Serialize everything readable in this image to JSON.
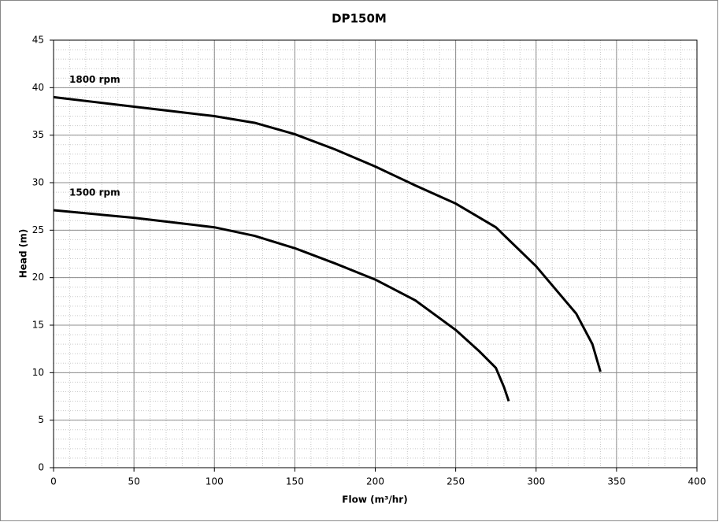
{
  "chart_data": {
    "type": "line",
    "title": "DP150M",
    "x_label": "Flow (m³/hr)",
    "y_label": "Head (m)",
    "xlim": [
      0,
      400
    ],
    "xticks": [
      0,
      50,
      100,
      150,
      200,
      250,
      300,
      350,
      400
    ],
    "ylim": [
      0,
      45
    ],
    "yticks": [
      0,
      5,
      10,
      15,
      20,
      25,
      30,
      35,
      40,
      45
    ],
    "grid": true,
    "series": [
      {
        "name": "1800 rpm",
        "color": "#000000",
        "x": [
          0,
          25,
          50,
          75,
          100,
          125,
          150,
          175,
          200,
          225,
          250,
          275,
          300,
          325,
          335,
          340
        ],
        "values": [
          39,
          38.5,
          38,
          37.5,
          37,
          36.3,
          35.1,
          33.5,
          31.7,
          29.7,
          27.8,
          25.3,
          21.2,
          16.2,
          13,
          10.1
        ]
      },
      {
        "name": "1500 rpm",
        "color": "#000000",
        "x": [
          0,
          50,
          100,
          125,
          150,
          175,
          200,
          225,
          250,
          265,
          275,
          280,
          283
        ],
        "values": [
          27.1,
          26.3,
          25.3,
          24.4,
          23.1,
          21.5,
          19.8,
          17.6,
          14.5,
          12.2,
          10.5,
          8.5,
          7
        ]
      }
    ]
  }
}
